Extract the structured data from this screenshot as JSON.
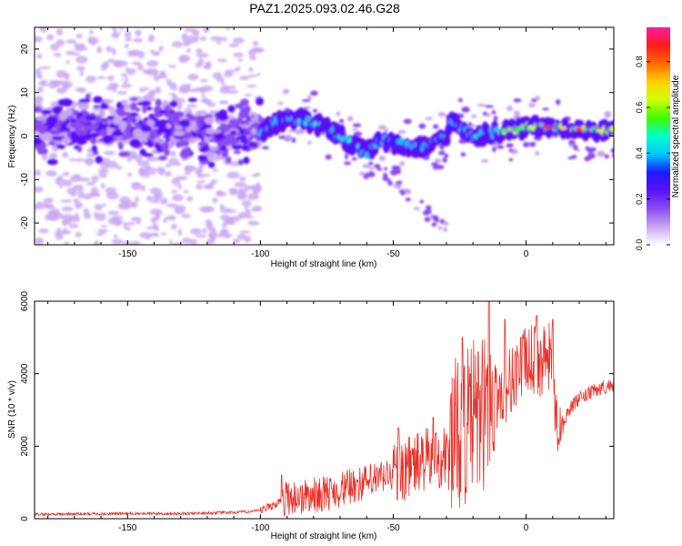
{
  "title": "PAZ1.2025.093.02.46.G28",
  "colors": {
    "snr_line": "#e8322a",
    "axis": "#000000",
    "colormap": [
      "#ffffff",
      "#c9a6f2",
      "#8a4cf0",
      "#5c10f8",
      "#1b1bff",
      "#00c8ff",
      "#00ffc8",
      "#3cff00",
      "#cfff00",
      "#ffd000",
      "#ff6a00",
      "#ff1a1a",
      "#ff1aa0"
    ]
  },
  "chart_data": [
    {
      "type": "heatmap",
      "xlabel": "Height of straight line (km)",
      "ylabel": "Frequency (Hz)",
      "colorbar_label": "Normalized spectral amplitude",
      "xlim": [
        -185,
        33
      ],
      "ylim": [
        -25,
        25
      ],
      "xticks": [
        -150,
        -100,
        -50,
        0
      ],
      "yticks": [
        -20,
        -10,
        0,
        10,
        20
      ],
      "cbar_ticks": [
        0.0,
        0.2,
        0.4,
        0.6,
        0.8
      ],
      "cbar_range": [
        0,
        0.95
      ],
      "ridge": {
        "x": [
          -185,
          -150,
          -120,
          -100,
          -95,
          -85,
          -75,
          -65,
          -60,
          -55,
          -45,
          -40,
          -35,
          -30,
          -28,
          -20,
          -10,
          0,
          10,
          20,
          33
        ],
        "y": [
          2,
          2,
          1,
          1,
          3,
          4,
          2,
          -2,
          -4,
          -1,
          -2,
          -3,
          -1,
          0,
          3,
          0,
          1,
          2,
          2,
          1.5,
          1
        ]
      },
      "noise_region_x": [
        -185,
        -100
      ]
    },
    {
      "type": "line",
      "xlabel": "Height of straight line (km)",
      "ylabel": "SNR (10 * v/v)",
      "xlim": [
        -185,
        33
      ],
      "ylim": [
        0,
        6000
      ],
      "xticks": [
        -150,
        -100,
        -50,
        0
      ],
      "yticks": [
        0,
        2000,
        4000,
        6000
      ],
      "series": [
        {
          "x": [
            -185,
            -170,
            -150,
            -130,
            -110,
            -100,
            -95,
            -92,
            -90,
            -85,
            -80,
            -75,
            -70,
            -65,
            -60,
            -55,
            -50,
            -45,
            -40,
            -35,
            -30,
            -28,
            -25,
            -22,
            -20,
            -18,
            -15,
            -14,
            -12,
            -10,
            -8,
            -5,
            -2,
            0,
            3,
            6,
            8,
            10,
            11,
            12,
            14,
            16,
            20,
            25,
            30,
            33
          ],
          "y": [
            120,
            130,
            140,
            140,
            170,
            220,
            380,
            500,
            600,
            580,
            650,
            700,
            800,
            900,
            1000,
            1100,
            1250,
            1400,
            1550,
            1700,
            1700,
            2200,
            2400,
            2600,
            2800,
            2700,
            3000,
            3200,
            3300,
            3500,
            3600,
            3900,
            4200,
            4300,
            4400,
            4300,
            4400,
            4400,
            3000,
            2400,
            2700,
            3000,
            3300,
            3500,
            3650,
            3700
          ],
          "peaks": {
            "x": [
              -92,
              -65,
              -48,
              -35,
              -24,
              -18,
              -14,
              -8,
              -2,
              4,
              10
            ],
            "y": [
              1200,
              1300,
              2500,
              2800,
              5000,
              4600,
              6000,
              5500,
              5000,
              5600,
              5500
            ]
          }
        }
      ]
    }
  ]
}
